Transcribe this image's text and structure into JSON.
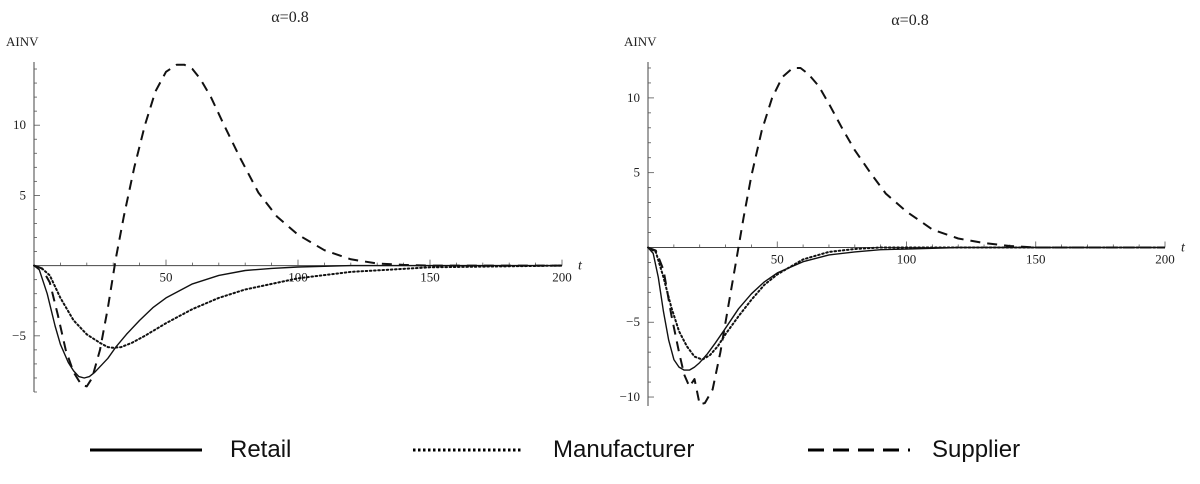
{
  "chart_data": [
    {
      "type": "line",
      "title": "α=0.8",
      "ylabel": "AINV",
      "xlabel": "t",
      "xlim": [
        0,
        200
      ],
      "ylim": [
        -9,
        14.5
      ],
      "xticks": [
        50,
        100,
        150,
        200
      ],
      "yticks": [
        -5,
        5,
        10
      ],
      "grid": false,
      "series": [
        {
          "name": "Retail",
          "style": "solid",
          "x": [
            0,
            2,
            5,
            8,
            10,
            13,
            15,
            17,
            19,
            21,
            23,
            25,
            28,
            31,
            35,
            40,
            45,
            50,
            55,
            60,
            70,
            80,
            90,
            100,
            120,
            150,
            200
          ],
          "y": [
            0,
            -0.3,
            -2.0,
            -4.3,
            -5.6,
            -6.9,
            -7.5,
            -7.9,
            -8.0,
            -7.9,
            -7.6,
            -7.2,
            -6.6,
            -5.8,
            -4.9,
            -3.9,
            -3.0,
            -2.3,
            -1.8,
            -1.3,
            -0.7,
            -0.35,
            -0.2,
            -0.1,
            0,
            0,
            0
          ]
        },
        {
          "name": "Manufacturer",
          "style": "dotted",
          "x": [
            0,
            3,
            6,
            10,
            15,
            20,
            25,
            28,
            30,
            33,
            37,
            42,
            50,
            60,
            70,
            80,
            90,
            100,
            120,
            150,
            200
          ],
          "y": [
            0,
            -0.2,
            -0.7,
            -2.3,
            -3.9,
            -4.9,
            -5.5,
            -5.8,
            -5.85,
            -5.8,
            -5.5,
            -5.0,
            -4.1,
            -3.1,
            -2.3,
            -1.7,
            -1.3,
            -0.9,
            -0.45,
            -0.12,
            0
          ]
        },
        {
          "name": "Supplier",
          "style": "dashed",
          "x": [
            0,
            3,
            6,
            9,
            12,
            15,
            18,
            20,
            22,
            25,
            28,
            31,
            34,
            38,
            42,
            46,
            50,
            54,
            57,
            60,
            63,
            67,
            72,
            78,
            85,
            92,
            100,
            110,
            120,
            130,
            140,
            150,
            165,
            180,
            200
          ],
          "y": [
            0,
            -0.2,
            -1.2,
            -3.5,
            -6.0,
            -7.6,
            -8.5,
            -8.6,
            -8.0,
            -6.0,
            -3.0,
            0.5,
            3.5,
            7.0,
            10.0,
            12.4,
            13.8,
            14.3,
            14.3,
            14.0,
            13.3,
            12.0,
            10.0,
            7.7,
            5.2,
            3.5,
            2.2,
            1.1,
            0.45,
            0.15,
            0.05,
            0,
            0,
            0,
            0
          ]
        }
      ]
    },
    {
      "type": "line",
      "title": "α=0.8",
      "ylabel": "AINV",
      "xlabel": "t",
      "xlim": [
        0,
        200
      ],
      "ylim": [
        -10.6,
        12.4
      ],
      "xticks": [
        50,
        100,
        150,
        200
      ],
      "yticks": [
        -10,
        -5,
        5,
        10
      ],
      "grid": false,
      "series": [
        {
          "name": "Retail",
          "style": "solid",
          "x": [
            0,
            2,
            4,
            6,
            8,
            10,
            12,
            14,
            16,
            18,
            20,
            23,
            26,
            30,
            35,
            40,
            45,
            50,
            60,
            70,
            80,
            90,
            100,
            120,
            150,
            200
          ],
          "y": [
            0,
            -0.4,
            -2.0,
            -4.3,
            -6.2,
            -7.5,
            -8.0,
            -8.2,
            -8.2,
            -8.0,
            -7.7,
            -7.1,
            -6.4,
            -5.4,
            -4.1,
            -3.1,
            -2.3,
            -1.7,
            -0.95,
            -0.5,
            -0.3,
            -0.15,
            -0.1,
            0,
            0,
            0
          ]
        },
        {
          "name": "Manufacturer",
          "style": "dotted",
          "x": [
            0,
            3,
            6,
            9,
            12,
            15,
            18,
            21,
            24,
            27,
            30,
            35,
            40,
            45,
            50,
            60,
            70,
            80,
            90,
            100,
            120,
            150,
            200
          ],
          "y": [
            0,
            -0.3,
            -2.0,
            -4.0,
            -5.6,
            -6.6,
            -7.3,
            -7.5,
            -7.2,
            -6.6,
            -5.8,
            -4.6,
            -3.5,
            -2.5,
            -1.8,
            -0.8,
            -0.3,
            -0.1,
            0,
            0,
            0,
            0,
            0
          ]
        },
        {
          "name": "Supplier",
          "style": "dashed",
          "x": [
            0,
            3,
            6,
            9,
            12,
            14,
            16,
            18,
            20,
            22,
            25,
            28,
            31,
            34,
            37,
            40,
            44,
            48,
            52,
            56,
            59,
            62,
            66,
            70,
            75,
            80,
            86,
            92,
            100,
            110,
            120,
            130,
            140,
            150,
            170,
            200
          ],
          "y": [
            0,
            -0.2,
            -1.5,
            -4.5,
            -7.0,
            -8.5,
            -9.3,
            -8.8,
            -10.5,
            -10.4,
            -9.5,
            -7.0,
            -4.0,
            -1.0,
            2.0,
            4.8,
            7.8,
            10.0,
            11.4,
            12.0,
            12.0,
            11.6,
            10.8,
            9.6,
            8.0,
            6.5,
            5.0,
            3.6,
            2.4,
            1.2,
            0.6,
            0.3,
            0.1,
            0,
            0,
            0
          ]
        }
      ]
    }
  ],
  "legend": [
    {
      "label": "Retail",
      "style": "solid"
    },
    {
      "label": "Manufacturer",
      "style": "dotted"
    },
    {
      "label": "Supplier",
      "style": "dashed"
    }
  ]
}
